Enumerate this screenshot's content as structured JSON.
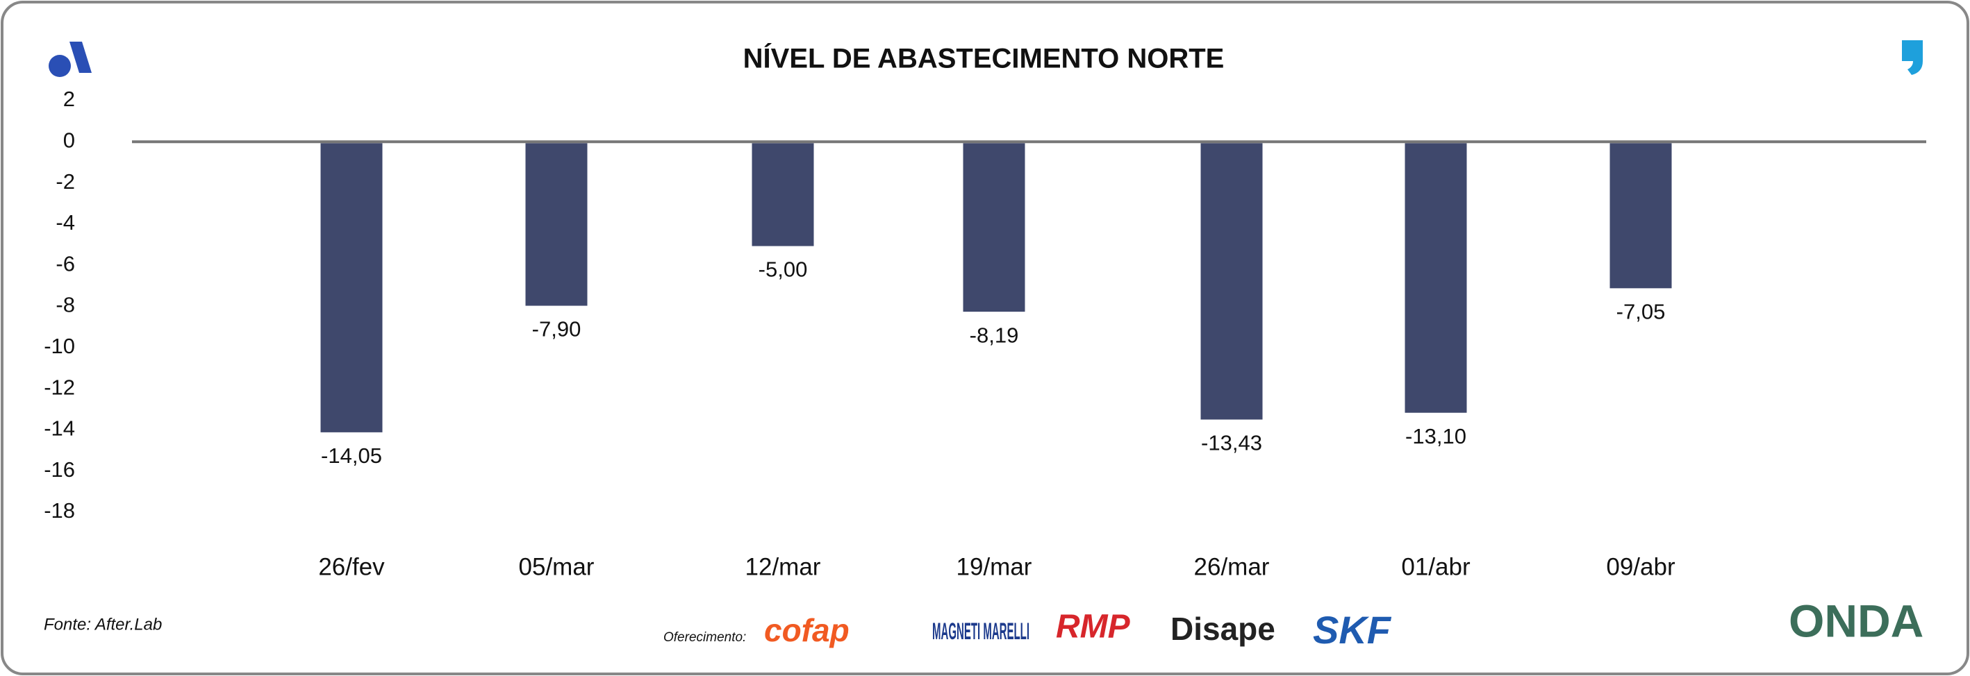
{
  "chart_data": {
    "type": "bar",
    "title": "NÍVEL DE ABASTECIMENTO NORTE",
    "categories": [
      "26/fev",
      "05/mar",
      "12/mar",
      "19/mar",
      "26/mar",
      "01/abr",
      "09/abr"
    ],
    "values": [
      -14.05,
      -7.9,
      -5.0,
      -8.19,
      -13.43,
      -13.1,
      -7.05
    ],
    "value_labels": [
      "-14,05",
      "-7,90",
      "-5,00",
      "-8,19",
      "-13,43",
      "-13,10",
      "-7,05"
    ],
    "color": "#3f486c",
    "ylim": [
      -18,
      2
    ],
    "yticks": [
      2,
      0,
      -2,
      -4,
      -6,
      -8,
      -10,
      -12,
      -14,
      -16,
      -18
    ]
  },
  "footer": {
    "source": "Fonte: After.Lab",
    "sponsor_label": "Oferecimento:",
    "sponsors": [
      "cofap",
      "MAGNETI MARELLI",
      "RMP",
      "Disape",
      "SKF"
    ],
    "brand": "ONDA"
  }
}
